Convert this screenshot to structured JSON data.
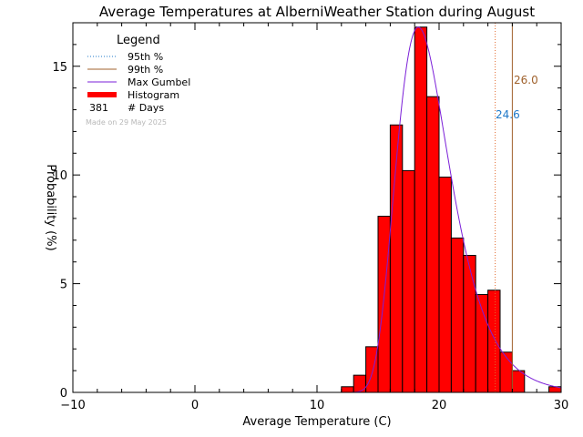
{
  "chart_data": {
    "type": "bar",
    "title": "Average Temperatures at AlberniWeather Station during August",
    "xlabel": "Average Temperature (C)",
    "ylabel": "Probability (%)",
    "xlim": [
      -10,
      30
    ],
    "ylim": [
      0,
      17
    ],
    "x_ticks": [
      -10,
      0,
      10,
      20,
      30
    ],
    "y_ticks": [
      0,
      5,
      10,
      15
    ],
    "legend": {
      "title": "Legend",
      "placement": "top-left",
      "entries": [
        {
          "label": "95th %",
          "style": "dotted",
          "color": "#1f78c8"
        },
        {
          "label": "99th %",
          "style": "solid",
          "color": "#a0622d"
        },
        {
          "label": "Max Gumbel",
          "style": "solid",
          "color": "#7b1fd8"
        },
        {
          "label": "Histogram",
          "style": "thick",
          "color": "#ff0000"
        }
      ],
      "count_value": "381",
      "count_label": "# Days",
      "made_on": "Made on 29 May 2025"
    },
    "histogram": {
      "bin_width": 1,
      "bin_starts": [
        12,
        13,
        14,
        15,
        16,
        17,
        18,
        19,
        20,
        21,
        22,
        23,
        24,
        25,
        26,
        27,
        28,
        29
      ],
      "values": [
        0.26,
        0.79,
        2.1,
        8.1,
        12.3,
        10.2,
        16.8,
        13.6,
        9.9,
        7.1,
        6.3,
        4.5,
        4.7,
        1.85,
        1.0,
        0,
        0,
        0.26
      ],
      "color": "#ff0000"
    },
    "percentile_95": {
      "value": 24.6,
      "label": "24.6",
      "color": "#1f78c8",
      "line_color": "#e36a2e"
    },
    "percentile_99": {
      "value": 26.0,
      "label": "26.0",
      "color": "#a0622d"
    },
    "gumbel": {
      "mode": 18.3,
      "scale": 2.18,
      "peak": 16.8,
      "color": "#7b1fd8"
    }
  }
}
